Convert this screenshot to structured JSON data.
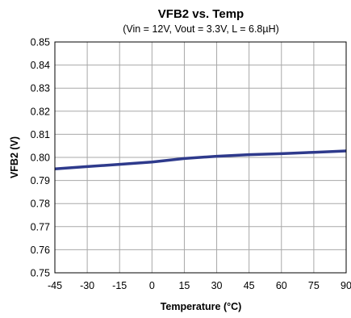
{
  "chart_data": {
    "type": "line",
    "title": "VFB2 vs. Temp",
    "subtitle": "(Vin = 12V, Vout = 3.3V, L = 6.8µH)",
    "xlabel": "Temperature (°C)",
    "ylabel": "VFB2 (V)",
    "xlim": [
      -45,
      90
    ],
    "ylim": [
      0.75,
      0.85
    ],
    "x_ticks": [
      "-45",
      "-30",
      "-15",
      "0",
      "15",
      "30",
      "45",
      "60",
      "75",
      "90"
    ],
    "y_ticks": [
      "0.75",
      "0.76",
      "0.77",
      "0.78",
      "0.79",
      "0.80",
      "0.81",
      "0.82",
      "0.83",
      "0.84",
      "0.85"
    ],
    "grid": true,
    "series": [
      {
        "color": "#2e3a8c",
        "x": [
          -45,
          -30,
          -15,
          0,
          15,
          30,
          45,
          60,
          75,
          90
        ],
        "y": [
          0.795,
          0.796,
          0.797,
          0.798,
          0.7995,
          0.8005,
          0.8012,
          0.8016,
          0.8022,
          0.8028
        ]
      }
    ]
  }
}
